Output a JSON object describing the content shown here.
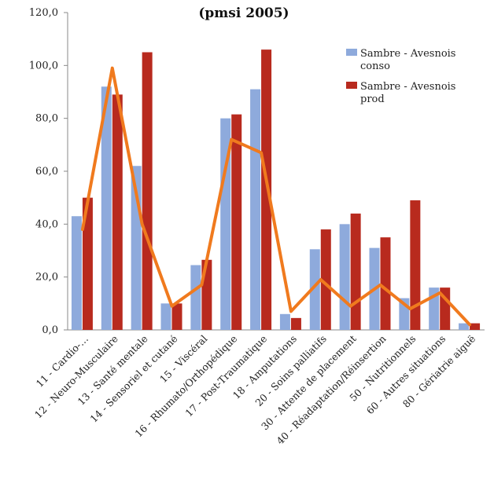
{
  "chart_data": {
    "type": "bar",
    "title": "(pmsi 2005)",
    "categories": [
      "11 - Cardio-…",
      "12 - Neuro-Musculaire",
      "13 - Santé mentale",
      "14 - Sensoriel et cutané",
      "15 - Viscéral",
      "16 - Rhumato/Orthopédique",
      "17 - Post-Traumatique",
      "18 - Amputations",
      "20 - Soins palliatifs",
      "30 - Attente de placement",
      "40 - Réadaptation/Réinsertion",
      "50 - Nutritionnels",
      "60 - Autres situations",
      "80 - Gériatrie aiguë"
    ],
    "series": [
      {
        "name": "Sambre - Avesnois conso",
        "values": [
          43,
          92,
          62,
          10,
          24.5,
          80,
          91,
          6,
          30.5,
          40,
          31,
          12,
          16,
          2.5
        ],
        "color": "#8eaadc"
      },
      {
        "name": "Sambre - Avesnois prod",
        "values": [
          50,
          89,
          105,
          10,
          26.5,
          81.5,
          106,
          4.5,
          38,
          44,
          35,
          49,
          16,
          2.5
        ],
        "color": "#b82a1e"
      }
    ],
    "line": {
      "values": [
        38,
        99,
        40,
        9,
        17,
        72,
        67,
        7,
        19,
        9,
        17,
        8,
        14,
        2
      ],
      "color": "#f07a1e"
    },
    "ylim": [
      0,
      120
    ],
    "yticks": [
      "0,0",
      "20,0",
      "40,0",
      "60,0",
      "80,0",
      "100,0",
      "120,0"
    ],
    "legend_position": "top-right",
    "grid": false
  }
}
